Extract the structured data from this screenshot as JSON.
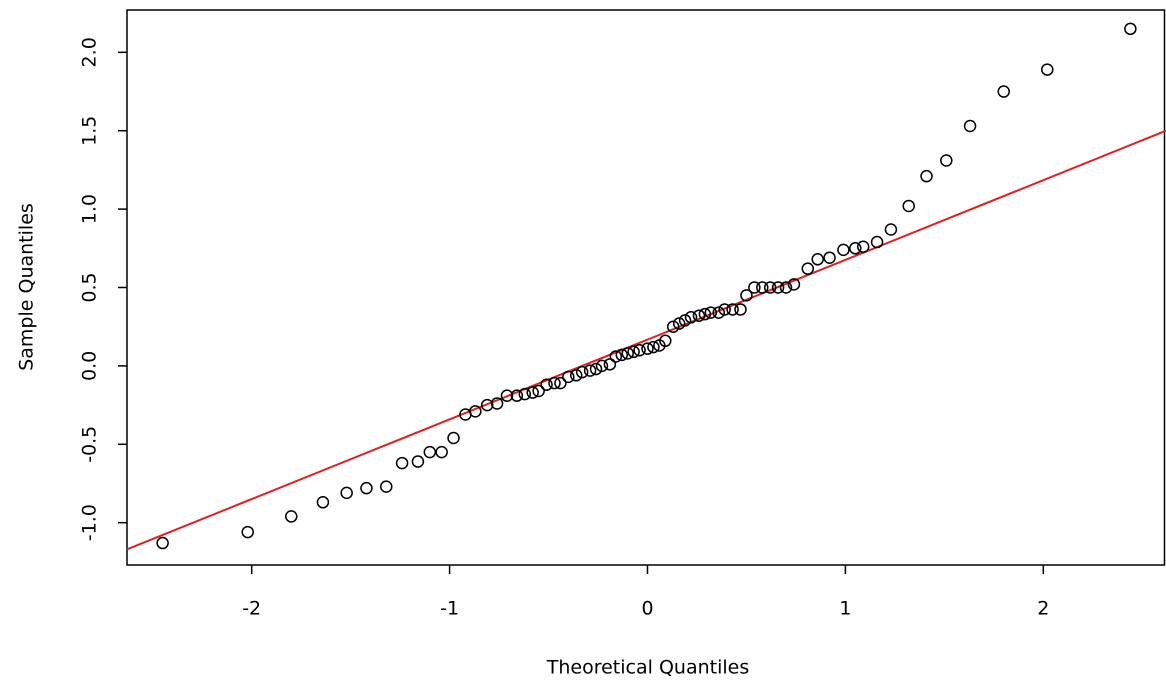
{
  "chart_data": {
    "type": "scatter",
    "x_label": "Theoretical Quantiles",
    "y_label": "Sample Quantiles",
    "xlim": [
      -2.63,
      2.62
    ],
    "ylim": [
      -1.27,
      2.27
    ],
    "xticks": [
      -2,
      -1,
      0,
      1,
      2
    ],
    "yticks": [
      {
        "value": -1,
        "label": "-1.0"
      },
      {
        "value": -0.5,
        "label": "-0.5"
      },
      {
        "value": 0,
        "label": "0.0"
      },
      {
        "value": 0.5,
        "label": "0.5"
      },
      {
        "value": 1,
        "label": "1.0"
      },
      {
        "value": 1.5,
        "label": "1.5"
      },
      {
        "value": 2,
        "label": "2.0"
      }
    ],
    "points": {
      "color": "#000000",
      "x": [
        -2.45,
        -2.02,
        -1.8,
        -1.64,
        -1.52,
        -1.42,
        -1.32,
        -1.24,
        -1.16,
        -1.1,
        -1.04,
        -0.98,
        -0.92,
        -0.87,
        -0.81,
        -0.76,
        -0.71,
        -0.66,
        -0.62,
        -0.58,
        -0.55,
        -0.51,
        -0.47,
        -0.44,
        -0.4,
        -0.36,
        -0.33,
        -0.29,
        -0.26,
        -0.23,
        -0.19,
        -0.16,
        -0.13,
        -0.1,
        -0.07,
        -0.04,
        0.0,
        0.03,
        0.06,
        0.09,
        0.13,
        0.16,
        0.19,
        0.22,
        0.26,
        0.29,
        0.32,
        0.36,
        0.39,
        0.43,
        0.47,
        0.5,
        0.54,
        0.58,
        0.62,
        0.66,
        0.7,
        0.74,
        0.81,
        0.86,
        0.92,
        0.99,
        1.05,
        1.09,
        1.16,
        1.23,
        1.32,
        1.41,
        1.51,
        1.63,
        1.8,
        2.02,
        2.44
      ],
      "y": [
        -1.13,
        -1.06,
        -0.96,
        -0.87,
        -0.81,
        -0.78,
        -0.77,
        -0.62,
        -0.61,
        -0.55,
        -0.55,
        -0.46,
        -0.31,
        -0.29,
        -0.25,
        -0.24,
        -0.19,
        -0.19,
        -0.18,
        -0.17,
        -0.16,
        -0.12,
        -0.11,
        -0.11,
        -0.07,
        -0.06,
        -0.04,
        -0.03,
        -0.02,
        0.0,
        0.01,
        0.06,
        0.07,
        0.08,
        0.09,
        0.1,
        0.11,
        0.12,
        0.13,
        0.16,
        0.25,
        0.27,
        0.29,
        0.31,
        0.32,
        0.33,
        0.34,
        0.34,
        0.36,
        0.36,
        0.36,
        0.45,
        0.5,
        0.5,
        0.5,
        0.5,
        0.5,
        0.52,
        0.62,
        0.68,
        0.69,
        0.74,
        0.75,
        0.76,
        0.79,
        0.87,
        1.02,
        1.21,
        1.31,
        1.53,
        1.75,
        1.89,
        2.15
      ]
    },
    "line": {
      "color": "#e02020",
      "x": [
        -2.63,
        2.62
      ],
      "y": [
        -1.17,
        1.5
      ]
    }
  }
}
